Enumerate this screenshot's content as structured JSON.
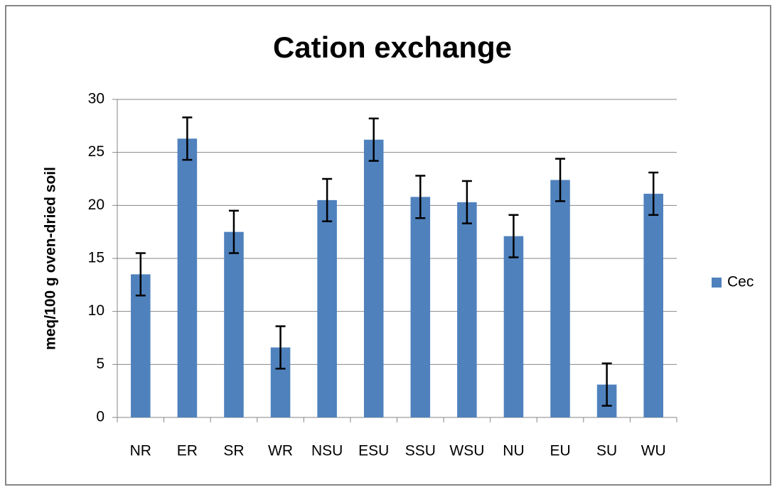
{
  "chart_data": {
    "type": "bar",
    "title": "Cation exchange",
    "ylabel": "meq/100 g oven-dried soil",
    "categories": [
      "NR",
      "ER",
      "SR",
      "WR",
      "NSU",
      "ESU",
      "SSU",
      "WSU",
      "NU",
      "EU",
      "SU",
      "WU"
    ],
    "series": [
      {
        "name": "Cec",
        "color": "#4f81bd",
        "values": [
          13.5,
          26.3,
          17.5,
          6.6,
          20.5,
          26.2,
          20.8,
          20.3,
          17.1,
          22.4,
          3.1,
          21.1
        ],
        "errors": [
          2,
          2,
          2,
          2,
          2,
          2,
          2,
          2,
          2,
          2,
          2,
          2
        ]
      }
    ],
    "ylim": [
      0,
      30
    ],
    "yticks": [
      0,
      5,
      10,
      15,
      20,
      25,
      30
    ],
    "grid": true,
    "legend": "right"
  }
}
